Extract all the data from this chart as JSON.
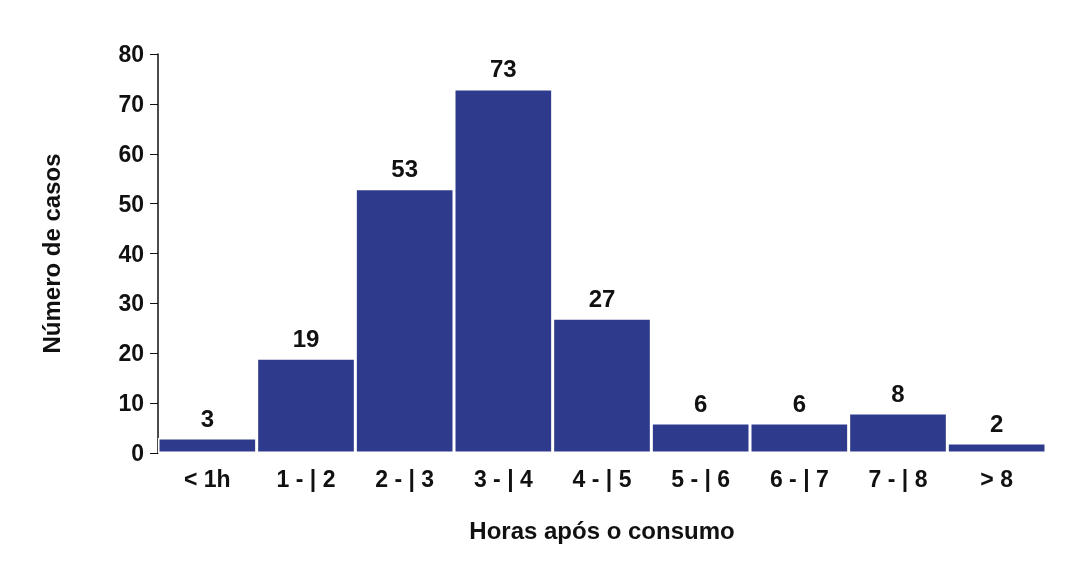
{
  "chart_data": {
    "type": "bar",
    "xlabel": "Horas após o consumo",
    "ylabel": "Número de casos",
    "categories": [
      "< 1h",
      "1 - | 2",
      "2 - | 3",
      "3 - | 4",
      "4 - | 5",
      "5 - | 6",
      "6 - | 7",
      "7 - | 8",
      "> 8"
    ],
    "values": [
      3,
      19,
      53,
      73,
      27,
      6,
      6,
      8,
      2
    ],
    "data_labels": true,
    "color": "#2e3a8c",
    "ylim": [
      0,
      80
    ],
    "yticks": [
      0,
      10,
      20,
      30,
      40,
      50,
      60,
      70,
      80
    ],
    "grid": false
  }
}
